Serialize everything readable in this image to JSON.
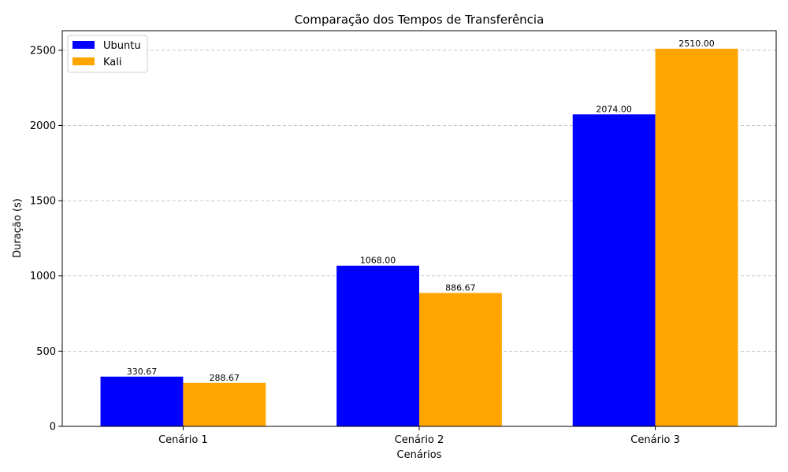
{
  "chart_data": {
    "type": "bar",
    "title": "Comparação dos Tempos de Transferência",
    "xlabel": "Cenários",
    "ylabel": "Duração (s)",
    "categories": [
      "Cenário 1",
      "Cenário 2",
      "Cenário 3"
    ],
    "series": [
      {
        "name": "Ubuntu",
        "values": [
          330.67,
          1068.0,
          2074.0
        ],
        "color": "#0000ff"
      },
      {
        "name": "Kali",
        "values": [
          288.67,
          886.67,
          2510.0
        ],
        "color": "#ffa500"
      }
    ],
    "data_labels": [
      [
        "330.67",
        "1068.00",
        "2074.00"
      ],
      [
        "288.67",
        "886.67",
        "2510.00"
      ]
    ],
    "ylim": [
      0,
      2630
    ],
    "yticks": [
      0,
      500,
      1000,
      1500,
      2000,
      2500
    ],
    "grid": "y-dashed",
    "legend_position": "top-left"
  }
}
